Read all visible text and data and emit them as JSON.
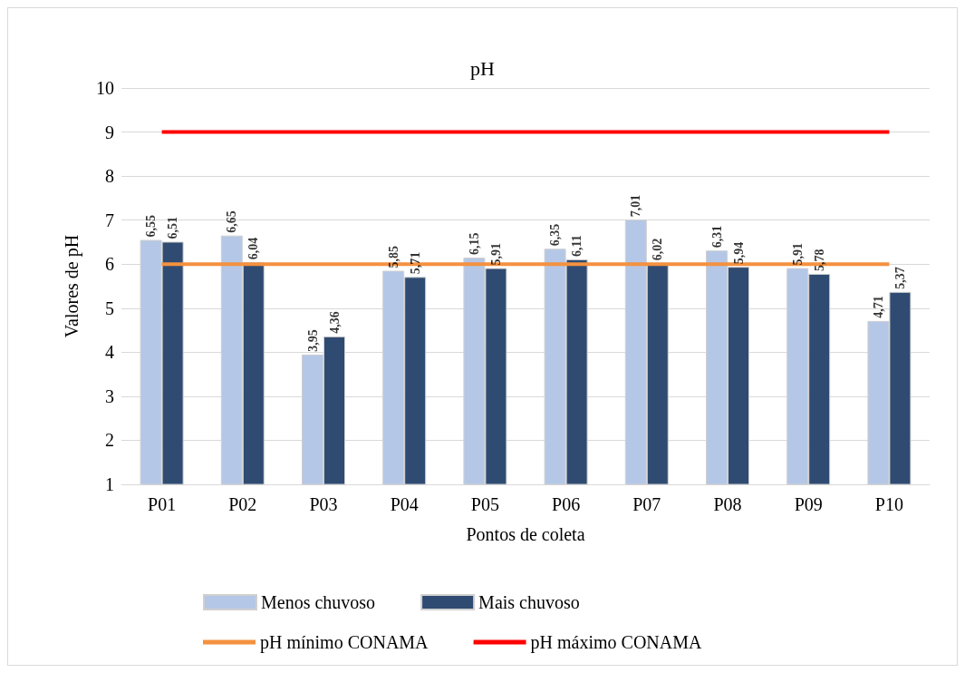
{
  "chart_data": {
    "type": "bar",
    "title": "pH",
    "xlabel": "Pontos de coleta",
    "ylabel": "Valores de pH",
    "categories": [
      "P01",
      "P02",
      "P03",
      "P04",
      "P05",
      "P06",
      "P07",
      "P08",
      "P09",
      "P10"
    ],
    "series": [
      {
        "name": "Menos chuvoso",
        "color": "#b4c7e7",
        "values": [
          6.55,
          6.65,
          3.95,
          5.85,
          6.15,
          6.35,
          7.01,
          6.31,
          5.91,
          4.71
        ],
        "value_labels": [
          "6,55",
          "6,65",
          "3,95",
          "5,85",
          "6,15",
          "6,35",
          "7,01",
          "6,31",
          "5,91",
          "4,71"
        ]
      },
      {
        "name": "Mais chuvoso",
        "color": "#2f4b72",
        "values": [
          6.51,
          6.04,
          4.36,
          5.71,
          5.91,
          6.11,
          6.02,
          5.94,
          5.78,
          5.37
        ],
        "value_labels": [
          "6,51",
          "6,04",
          "4,36",
          "5,71",
          "5,91",
          "6,11",
          "6,02",
          "5,94",
          "5,78",
          "5,37"
        ]
      },
      {
        "name": "pH mínimo CONAMA",
        "type": "line",
        "color": "#f4913f",
        "values": [
          6,
          6,
          6,
          6,
          6,
          6,
          6,
          6,
          6,
          6
        ]
      },
      {
        "name": "pH máximo CONAMA",
        "type": "line",
        "color": "#ff0000",
        "values": [
          9,
          9,
          9,
          9,
          9,
          9,
          9,
          9,
          9,
          9
        ]
      }
    ],
    "ylim": [
      1,
      10
    ],
    "yticks": [
      1,
      2,
      3,
      4,
      5,
      6,
      7,
      8,
      9,
      10
    ],
    "grid": "y",
    "legend": "bottom",
    "marker": "none"
  }
}
